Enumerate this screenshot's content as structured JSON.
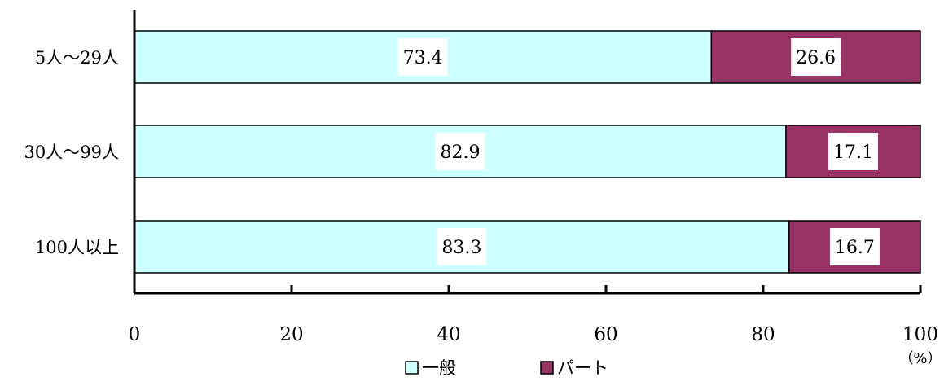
{
  "chart_data": {
    "type": "bar",
    "orientation": "horizontal",
    "stacked": true,
    "categories": [
      "5人～29人",
      "30人～99人",
      "100人以上"
    ],
    "series": [
      {
        "name": "一般",
        "values": [
          73.4,
          82.9,
          83.3
        ],
        "color": "#ccffff"
      },
      {
        "name": "パート",
        "values": [
          26.6,
          17.1,
          16.7
        ],
        "color": "#993366"
      }
    ],
    "x_ticks": [
      "0",
      "20",
      "40",
      "60",
      "80",
      "100"
    ],
    "xlim": [
      0,
      100
    ],
    "unit_label": "（%）",
    "grid": false,
    "legend_position": "bottom-center",
    "data_labels": true
  }
}
